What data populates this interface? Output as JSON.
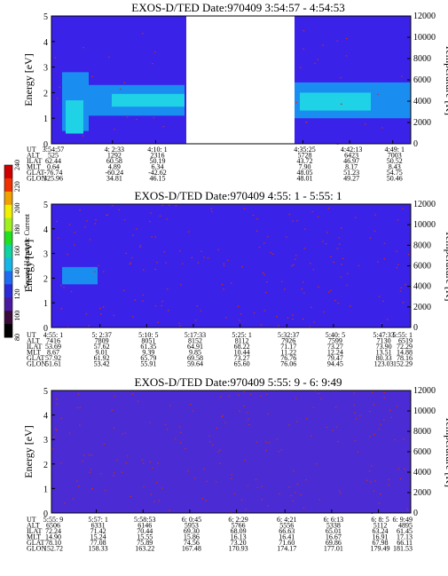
{
  "colors": {
    "background_blue": "#3b22e8",
    "purple_fill": "#4a2bd4",
    "light_band": "#1fd2e6",
    "mid_band": "#1a8ef0",
    "dots": "#c0302a",
    "gap": "#ffffff"
  },
  "colorbar": {
    "label": "Second Harmonic Current",
    "ticks": [
      "80",
      "100",
      "120",
      "140",
      "160",
      "180",
      "200",
      "220",
      "240"
    ],
    "colors": [
      "#000000",
      "#3a0a3a",
      "#4a1aa0",
      "#2b2bd8",
      "#1f6cf0",
      "#18b6e8",
      "#10d4a0",
      "#20e020",
      "#a0f020",
      "#f0f000",
      "#f0a000",
      "#f03000",
      "#d00000"
    ]
  },
  "row_labels": [
    "UT",
    "ALT",
    "ILAT",
    "MLT",
    "GLAT",
    "GLON"
  ],
  "chart_data": [
    {
      "type": "heatmap",
      "title": "EXOS-D/TED   Date:970409  3:54:57 - 4:54:53",
      "ylabel": "Energy [eV]",
      "y2label": "Temperature [K]",
      "ylim": [
        0,
        5
      ],
      "y_ticks": [
        "0",
        "1",
        "2",
        "3",
        "4",
        "5"
      ],
      "y2lim": [
        0,
        12000
      ],
      "y2_ticks": [
        "0",
        "2000",
        "4000",
        "6000",
        "8000",
        "10000",
        "12000"
      ],
      "gap": true,
      "columns": [
        {
          "UT": "3:54:57",
          "ALT": "525",
          "ILAT": "62.44",
          "MLT": "0.64",
          "GLAT": "-76.74",
          "GLON": "325.96"
        },
        {
          "UT": "4: 2:33",
          "ALT": "1292",
          "ILAT": "60.58",
          "MLT": "4.89",
          "GLAT": "-60.24",
          "GLON": "34.81"
        },
        {
          "UT": "4:10: 1",
          "ALT": "2316",
          "ILAT": "50.19",
          "MLT": "6.34",
          "GLAT": "-42.62",
          "GLON": "46.15"
        },
        {
          "UT": "4:35:25",
          "ALT": "5728",
          "ILAT": "43.72",
          "MLT": "7.90",
          "GLAT": "48.05",
          "GLON": "48.01"
        },
        {
          "UT": "4:42:13",
          "ALT": "6423",
          "ILAT": "46.97",
          "MLT": "8.17",
          "GLAT": "51.23",
          "GLON": "49.27"
        },
        {
          "UT": "4:49: 1",
          "ALT": "7003",
          "ILAT": "50.52",
          "MLT": "8.43",
          "GLAT": "54.75",
          "GLON": "50.46"
        }
      ]
    },
    {
      "type": "heatmap",
      "title": "EXOS-D/TED   Date:970409  4:55: 1 - 5:55: 1",
      "ylabel": "Energy [eV]",
      "y2label": "Temperature [K]",
      "ylim": [
        0,
        5
      ],
      "y_ticks": [
        "0",
        "1",
        "2",
        "3",
        "4",
        "5"
      ],
      "y2lim": [
        0,
        12000
      ],
      "y2_ticks": [
        "0",
        "2000",
        "4000",
        "6000",
        "8000",
        "10000",
        "12000"
      ],
      "gap": false,
      "columns": [
        {
          "UT": "4:55: 1",
          "ALT": "7416",
          "ILAT": "53.69",
          "MLT": "8.67",
          "GLAT": "57.92",
          "GLON": "51.61"
        },
        {
          "UT": "5: 2:37",
          "ALT": "7809",
          "ILAT": "57.62",
          "MLT": "9.01",
          "GLAT": "61.92",
          "GLON": "53.42"
        },
        {
          "UT": "5:10: 5",
          "ALT": "8051",
          "ILAT": "61.35",
          "MLT": "9.39",
          "GLAT": "65.79",
          "GLON": "55.91"
        },
        {
          "UT": "5:17:33",
          "ALT": "8152",
          "ILAT": "64.91",
          "MLT": "9.85",
          "GLAT": "69.58",
          "GLON": "59.64"
        },
        {
          "UT": "5:25: 1",
          "ALT": "8112",
          "ILAT": "68.22",
          "MLT": "10.44",
          "GLAT": "73.27",
          "GLON": "65.60"
        },
        {
          "UT": "5:32:37",
          "ALT": "7926",
          "ILAT": "71.17",
          "MLT": "11.22",
          "GLAT": "76.76",
          "GLON": "76.06"
        },
        {
          "UT": "5:40: 5",
          "ALT": "7599",
          "ILAT": "73.27",
          "MLT": "12.24",
          "GLAT": "79.47",
          "GLON": "94.45"
        },
        {
          "UT": "5:47:33",
          "ALT": "7130",
          "ILAT": "73.90",
          "MLT": "13.51",
          "GLAT": "80.33",
          "GLON": "123.03"
        },
        {
          "UT": "5:55: 1",
          "ALT": "6519",
          "ILAT": "72.29",
          "MLT": "14.88",
          "GLAT": "78.16",
          "GLON": "152.29"
        }
      ]
    },
    {
      "type": "heatmap",
      "title": "EXOS-D/TED   Date:970409  5:55: 9 - 6: 9:49",
      "ylabel": "Energy [eV]",
      "y2label": "Temperature [K]",
      "ylim": [
        0,
        5
      ],
      "y_ticks": [
        "0",
        "1",
        "2",
        "3",
        "4",
        "5"
      ],
      "y2lim": [
        0,
        12000
      ],
      "y2_ticks": [
        "0",
        "2000",
        "4000",
        "6000",
        "8000",
        "10000",
        "12000"
      ],
      "gap": false,
      "columns": [
        {
          "UT": "5:55: 9",
          "ALT": "6506",
          "ILAT": "72.24",
          "MLT": "14.90",
          "GLAT": "78.10",
          "GLON": "152.72"
        },
        {
          "UT": "5:57: 1",
          "ALT": "6331",
          "ILAT": "71.42",
          "MLT": "15.24",
          "GLAT": "77.08",
          "GLON": "158.33"
        },
        {
          "UT": "5:58:53",
          "ALT": "6146",
          "ILAT": "70.44",
          "MLT": "15.55",
          "GLAT": "75.89",
          "GLON": "163.22"
        },
        {
          "UT": "6: 0:45",
          "ALT": "5953",
          "ILAT": "69.30",
          "MLT": "15.86",
          "GLAT": "74.56",
          "GLON": "167.48"
        },
        {
          "UT": "6: 2:29",
          "ALT": "5766",
          "ILAT": "68.09",
          "MLT": "16.13",
          "GLAT": "73.20",
          "GLON": "170.93"
        },
        {
          "UT": "6: 4:21",
          "ALT": "5556",
          "ILAT": "66.63",
          "MLT": "16.41",
          "GLAT": "71.60",
          "GLON": "174.17"
        },
        {
          "UT": "6: 6:13",
          "ALT": "5338",
          "ILAT": "65.01",
          "MLT": "16.67",
          "GLAT": "69.86",
          "GLON": "177.01"
        },
        {
          "UT": "6: 8: 5",
          "ALT": "5112",
          "ILAT": "63.24",
          "MLT": "16.91",
          "GLAT": "67.98",
          "GLON": "179.49"
        },
        {
          "UT": "6: 9:49",
          "ALT": "4895",
          "ILAT": "61.45",
          "MLT": "17.13",
          "GLAT": "66.11",
          "GLON": "181.53"
        }
      ]
    }
  ]
}
